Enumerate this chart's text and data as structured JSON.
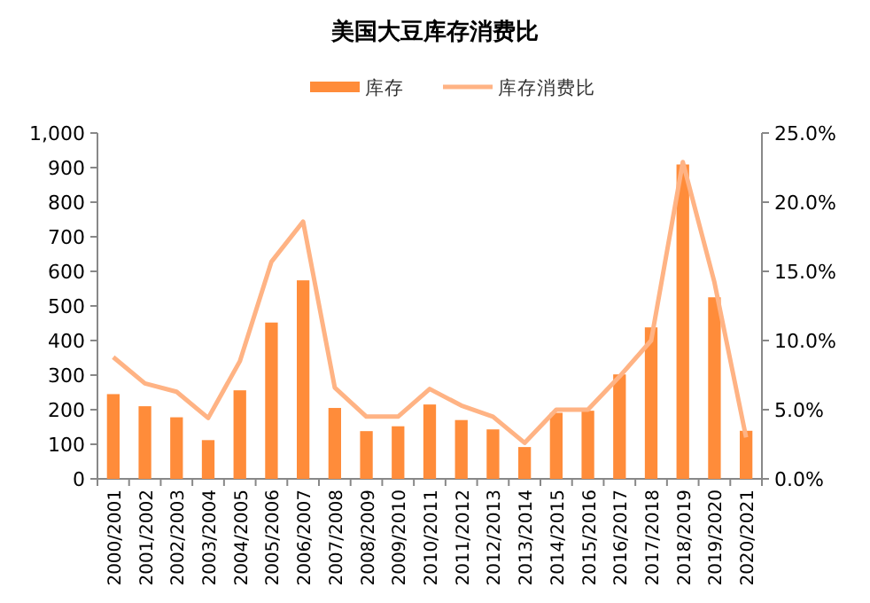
{
  "chart_data": {
    "type": "bar",
    "title": "美国大豆库存消费比",
    "categories": [
      "2000/2001",
      "2001/2002",
      "2002/2003",
      "2003/2004",
      "2004/2005",
      "2005/2006",
      "2006/2007",
      "2007/2008",
      "2008/2009",
      "2009/2010",
      "2010/2011",
      "2011/2012",
      "2012/2013",
      "2013/2014",
      "2014/2015",
      "2015/2016",
      "2016/2017",
      "2017/2018",
      "2018/2019",
      "2019/2020",
      "2020/2021"
    ],
    "series": [
      {
        "name": "库存",
        "color": "#ff8c3a",
        "values": [
          245,
          210,
          178,
          112,
          256,
          452,
          574,
          205,
          138,
          152,
          215,
          170,
          143,
          92,
          191,
          197,
          302,
          438,
          909,
          525,
          139
        ]
      },
      {
        "name": "库存消费比",
        "type": "line",
        "axis": "y2",
        "color": "#ffb384",
        "values": [
          8.8,
          6.9,
          6.3,
          4.4,
          8.5,
          15.7,
          18.6,
          6.6,
          4.5,
          4.5,
          6.5,
          5.3,
          4.5,
          2.6,
          5.0,
          5.0,
          7.4,
          10.0,
          22.9,
          14.2,
          3.0
        ]
      }
    ],
    "ylim": [
      0,
      1000
    ],
    "yticks": [
      {
        "value": 0,
        "label": "0"
      },
      {
        "value": 100,
        "label": "100"
      },
      {
        "value": 200,
        "label": "200"
      },
      {
        "value": 300,
        "label": "300"
      },
      {
        "value": 400,
        "label": "400"
      },
      {
        "value": 500,
        "label": "500"
      },
      {
        "value": 600,
        "label": "600"
      },
      {
        "value": 700,
        "label": "700"
      },
      {
        "value": 800,
        "label": "800"
      },
      {
        "value": 900,
        "label": "900"
      },
      {
        "value": 1000,
        "label": "1,000"
      }
    ],
    "y2lim": [
      0,
      25
    ],
    "y2ticks": [
      {
        "value": 0,
        "label": "0.0%"
      },
      {
        "value": 5,
        "label": "5.0%"
      },
      {
        "value": 10,
        "label": "10.0%"
      },
      {
        "value": 15,
        "label": "15.0%"
      },
      {
        "value": 20,
        "label": "20.0%"
      },
      {
        "value": 25,
        "label": "25.0%"
      }
    ],
    "legend": "top",
    "grid": false
  }
}
